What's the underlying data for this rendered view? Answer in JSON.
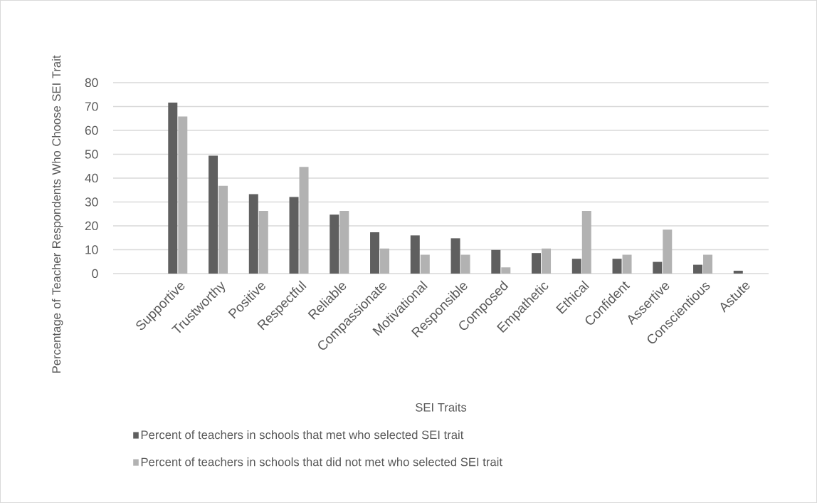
{
  "chart_data": {
    "type": "bar",
    "xlabel": "SEI Traits",
    "ylabel": "Percentage of Teacher Respondents Who Choose SEI Trait",
    "categories": [
      "Supportive",
      "Trustworthy",
      "Positive",
      "Respectful",
      "Reliable",
      "Compassionate",
      "Motivational",
      "Responsible",
      "Composed",
      "Empathetic",
      "Ethical",
      "Confident",
      "Assertive",
      "Conscientious",
      "Astute"
    ],
    "series": [
      {
        "name": "Percent of teachers in schools that met who selected SEI trait",
        "color": "#5f5f5f",
        "values": [
          71.6,
          49.4,
          33.3,
          32.1,
          24.7,
          17.3,
          16.0,
          14.8,
          9.9,
          8.6,
          6.2,
          6.2,
          4.9,
          3.7,
          1.2
        ]
      },
      {
        "name": "Percent of teachers in schools that did not met who selected SEI trait",
        "color": "#b2b2b2",
        "values": [
          65.8,
          36.8,
          26.3,
          44.7,
          26.3,
          10.5,
          7.9,
          7.9,
          2.6,
          10.5,
          26.3,
          7.9,
          18.4,
          7.9,
          0
        ]
      }
    ],
    "ylim": [
      0,
      80
    ],
    "yticks": [
      0,
      10,
      20,
      30,
      40,
      50,
      60,
      70,
      80
    ],
    "grid": "y",
    "legend": "bottom"
  }
}
